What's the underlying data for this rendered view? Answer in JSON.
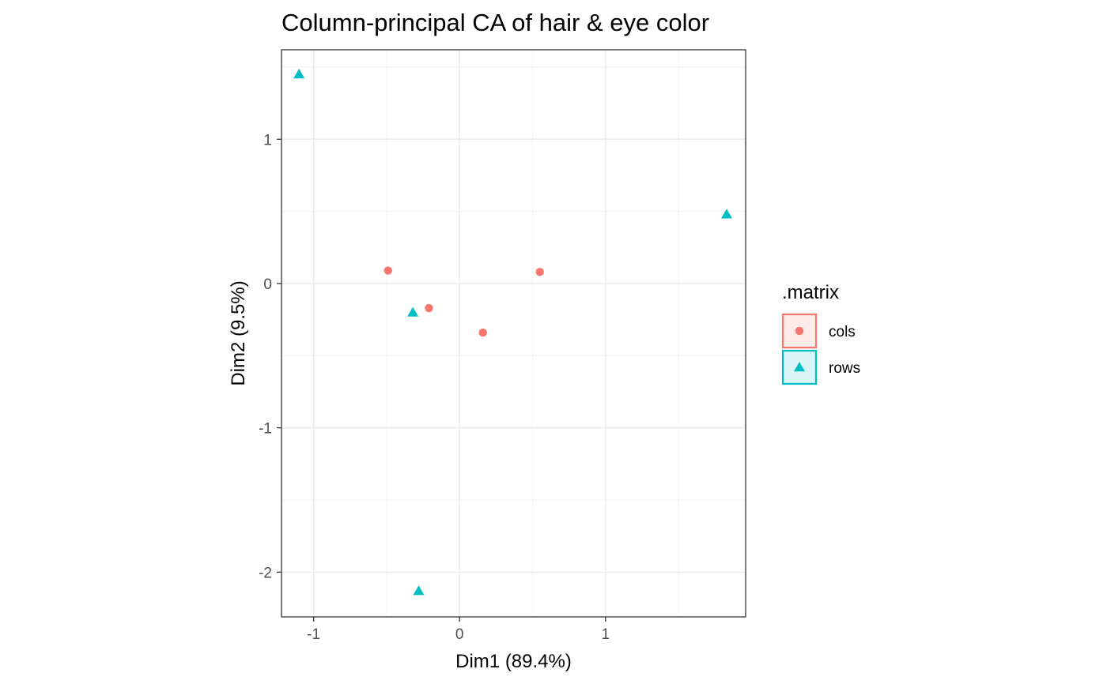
{
  "chart_data": {
    "type": "scatter",
    "title": "Column-principal CA of hair & eye color",
    "xlabel": "Dim1 (89.4%)",
    "ylabel": "Dim2 (9.5%)",
    "xlim": [
      -1.22,
      1.96
    ],
    "ylim": [
      -2.31,
      1.62
    ],
    "x_ticks": [
      -1,
      0,
      1
    ],
    "y_ticks": [
      -2,
      -1,
      0,
      1
    ],
    "x_tick_labels": [
      "-1",
      "0",
      "1"
    ],
    "y_tick_labels": [
      "-2",
      "-1",
      "0",
      "1"
    ],
    "grid": true,
    "legend": {
      "title": ".matrix",
      "position": "right"
    },
    "series": [
      {
        "name": "cols",
        "shape": "circle",
        "color": "#F8766D",
        "points": [
          {
            "x": -0.49,
            "y": 0.09
          },
          {
            "x": -0.21,
            "y": -0.17
          },
          {
            "x": 0.16,
            "y": -0.34
          },
          {
            "x": 0.55,
            "y": 0.08
          }
        ]
      },
      {
        "name": "rows",
        "shape": "triangle",
        "color": "#00BFC4",
        "points": [
          {
            "x": -1.1,
            "y": 1.45
          },
          {
            "x": -0.32,
            "y": -0.2
          },
          {
            "x": -0.28,
            "y": -2.13
          },
          {
            "x": 1.83,
            "y": 0.48
          }
        ]
      }
    ]
  }
}
